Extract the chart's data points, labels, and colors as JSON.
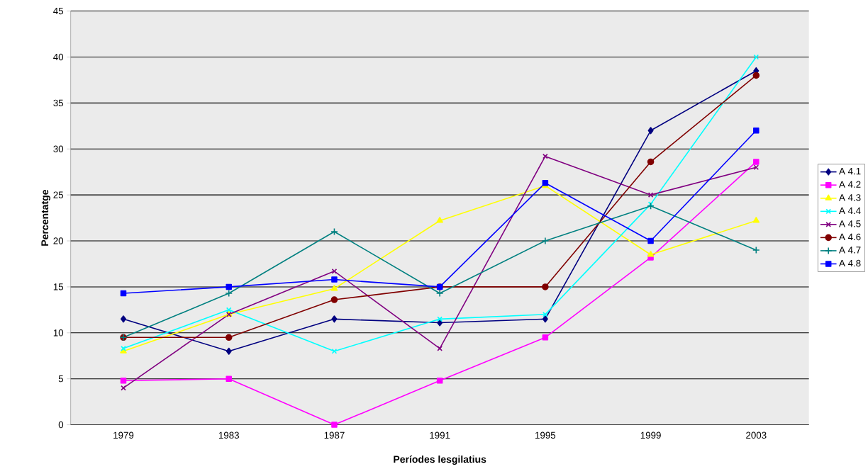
{
  "chart_data": {
    "type": "line",
    "xlabel": "Períodes lesgilatius",
    "ylabel": "Percentatge",
    "categories": [
      "1979",
      "1983",
      "1987",
      "1991",
      "1995",
      "1999",
      "2003"
    ],
    "ylim": [
      0,
      45
    ],
    "yticks": [
      0,
      5,
      10,
      15,
      20,
      25,
      30,
      35,
      40,
      45
    ],
    "grid": "y",
    "legend": "right",
    "series": [
      {
        "name": "A 4.1",
        "color": "#000080",
        "marker": "diamond",
        "values": [
          11.5,
          8,
          11.5,
          11.1,
          11.5,
          32,
          38.5
        ]
      },
      {
        "name": "A 4.2",
        "color": "#ff00ff",
        "marker": "square",
        "values": [
          4.8,
          5,
          0,
          4.8,
          9.5,
          18.2,
          28.6
        ]
      },
      {
        "name": "A 4.3",
        "color": "#ffff00",
        "marker": "triangle",
        "values": [
          8,
          12,
          14.8,
          22.2,
          26,
          18.5,
          22.2
        ]
      },
      {
        "name": "A 4.4",
        "color": "#00ffff",
        "marker": "cross",
        "values": [
          8.3,
          12.5,
          8,
          11.5,
          12,
          24,
          40
        ]
      },
      {
        "name": "A 4.5",
        "color": "#800080",
        "marker": "cross",
        "values": [
          4,
          12,
          16.7,
          8.3,
          29.2,
          25,
          28
        ]
      },
      {
        "name": "A 4.6",
        "color": "#800000",
        "marker": "circle",
        "values": [
          9.5,
          9.5,
          13.6,
          15,
          15,
          28.6,
          38
        ]
      },
      {
        "name": "A 4.7",
        "color": "#008080",
        "marker": "plus",
        "values": [
          9.5,
          14.3,
          21,
          14.3,
          20,
          23.8,
          19
        ]
      },
      {
        "name": "A 4.8",
        "color": "#0000ff",
        "marker": "square",
        "values": [
          14.3,
          15,
          15.8,
          15,
          26.3,
          20,
          32
        ]
      }
    ]
  }
}
